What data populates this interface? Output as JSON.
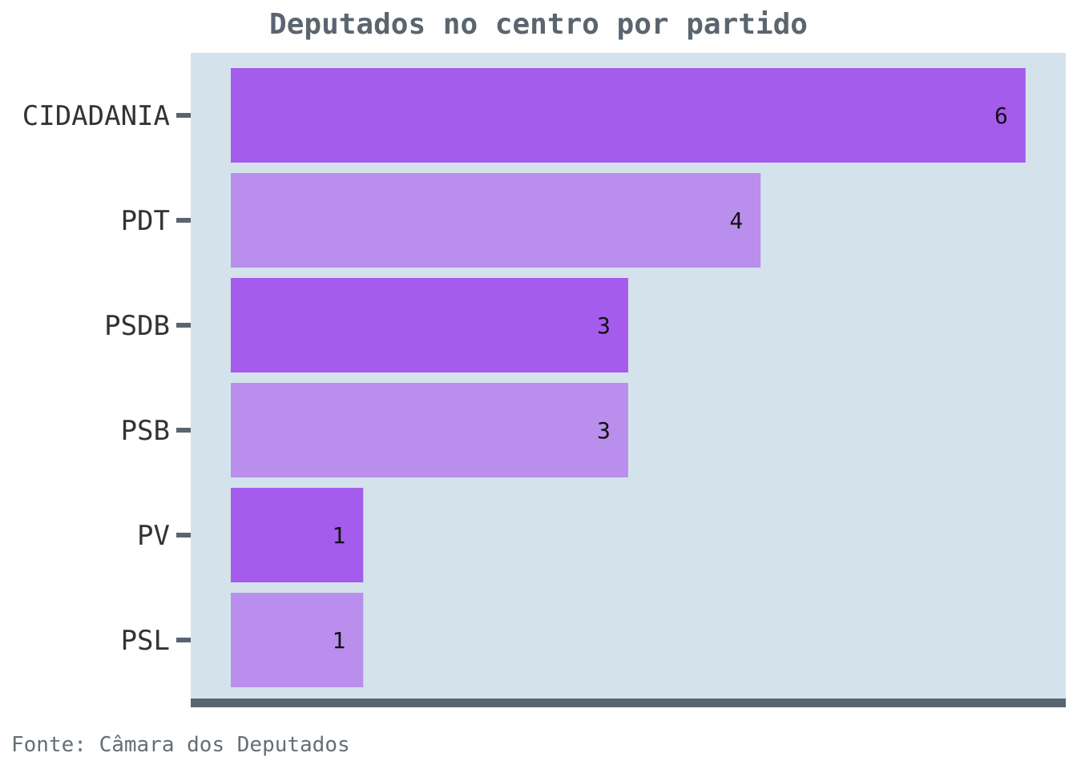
{
  "chart_data": {
    "type": "bar",
    "orientation": "horizontal",
    "title": "Deputados no centro por partido",
    "caption": "Fonte: Câmara dos Deputados",
    "categories": [
      "CIDADANIA",
      "PDT",
      "PSDB",
      "PSB",
      "PV",
      "PSL"
    ],
    "values": [
      6,
      4,
      3,
      3,
      1,
      1
    ],
    "xlim": [
      0,
      6.3
    ],
    "xlabel": "",
    "ylabel": "",
    "grid": false,
    "legend": "none",
    "data_labels": true,
    "colors": {
      "panel_background": "#d4e3eb",
      "bar_dark": "#a55bec",
      "bar_light": "#b98eec",
      "axis_line": "#5a6570",
      "title": "#5a6570"
    }
  }
}
